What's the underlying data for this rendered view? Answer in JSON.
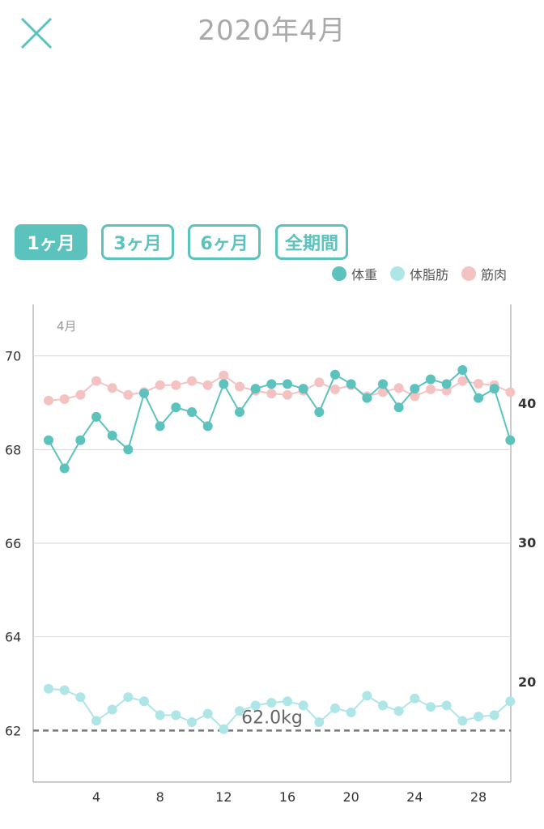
{
  "header": {
    "title": "2020年4月"
  },
  "colors": {
    "accent": "#5cc2bd",
    "weight": "#5cc2bd",
    "body_fat": "#aee6e8",
    "muscle": "#f5c2c2"
  },
  "range_tabs": [
    {
      "label": "1ヶ月",
      "active": true
    },
    {
      "label": "3ヶ月",
      "active": false
    },
    {
      "label": "6ヶ月",
      "active": false
    },
    {
      "label": "全期間",
      "active": false
    }
  ],
  "legend": [
    {
      "label": "体重"
    },
    {
      "label": "体脂肪"
    },
    {
      "label": "筋肉"
    }
  ],
  "chart_data": {
    "type": "line",
    "month_label": "4月",
    "target_label": "62.0kg",
    "target_value": 62.0,
    "x": [
      1,
      2,
      3,
      4,
      5,
      6,
      7,
      8,
      9,
      10,
      11,
      12,
      13,
      14,
      15,
      16,
      17,
      18,
      19,
      20,
      21,
      22,
      23,
      24,
      25,
      26,
      27,
      28,
      29,
      30
    ],
    "x_ticks": [
      "4",
      "8",
      "12",
      "16",
      "20",
      "24",
      "28"
    ],
    "x_tick_values": [
      4,
      8,
      12,
      16,
      20,
      24,
      28
    ],
    "left_axis": {
      "ticks": [
        "62",
        "64",
        "66",
        "68",
        "70"
      ],
      "tick_values": [
        62,
        64,
        66,
        68,
        70
      ],
      "range": [
        60.9,
        71.1
      ]
    },
    "right_axis": {
      "ticks": [
        "20",
        "30",
        "40"
      ],
      "tick_values": [
        20,
        30,
        40
      ],
      "range": [
        12.8,
        47.1
      ]
    },
    "series": [
      {
        "name": "体重",
        "axis": "left",
        "values": [
          68.2,
          67.6,
          68.2,
          68.7,
          68.3,
          68.0,
          69.2,
          68.5,
          68.9,
          68.8,
          68.5,
          69.4,
          68.8,
          69.3,
          69.4,
          69.4,
          69.3,
          68.8,
          69.6,
          69.4,
          69.1,
          69.4,
          68.9,
          69.3,
          69.5,
          69.4,
          69.7,
          69.1,
          69.3,
          68.2
        ]
      },
      {
        "name": "体脂肪",
        "axis": "right",
        "values": [
          19.5,
          19.4,
          18.9,
          17.2,
          18.0,
          18.9,
          18.6,
          17.6,
          17.6,
          17.1,
          17.7,
          16.6,
          17.9,
          18.3,
          18.5,
          18.6,
          18.3,
          17.1,
          18.1,
          17.8,
          19.0,
          18.3,
          17.9,
          18.8,
          18.2,
          18.3,
          17.2,
          17.5,
          17.6,
          18.6
        ]
      },
      {
        "name": "筋肉",
        "axis": "right",
        "values": [
          40.2,
          40.3,
          40.6,
          41.6,
          41.1,
          40.6,
          40.8,
          41.3,
          41.3,
          41.6,
          41.3,
          42.0,
          41.2,
          40.9,
          40.7,
          40.6,
          40.9,
          41.5,
          41.0,
          41.3,
          40.5,
          40.8,
          41.1,
          40.5,
          41.0,
          40.9,
          41.6,
          41.4,
          41.3,
          40.8
        ]
      }
    ]
  }
}
